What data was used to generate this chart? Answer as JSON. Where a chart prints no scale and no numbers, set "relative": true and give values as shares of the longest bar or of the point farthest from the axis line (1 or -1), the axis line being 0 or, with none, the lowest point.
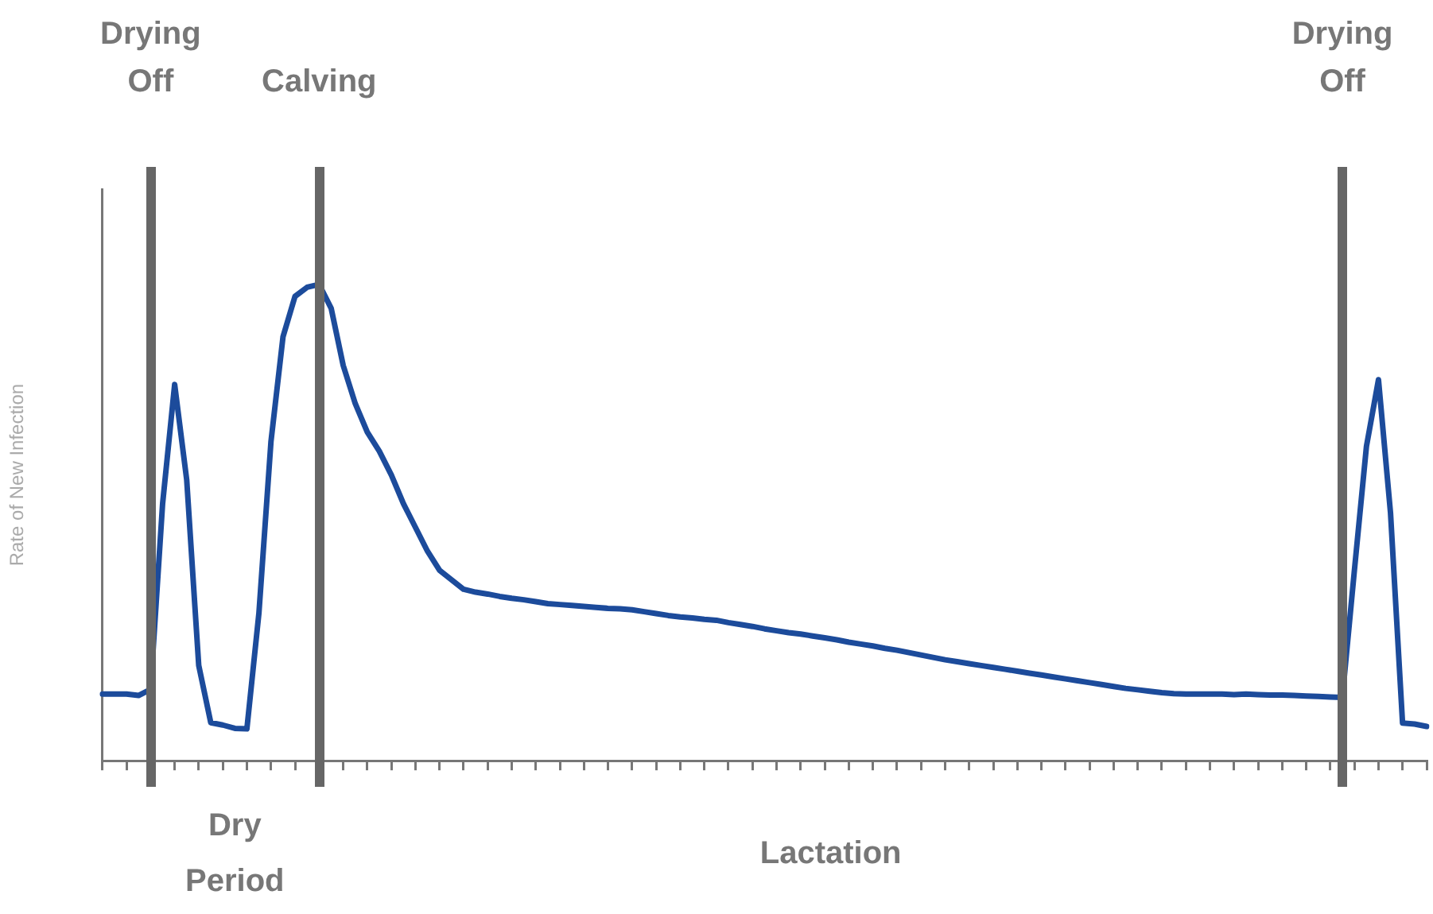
{
  "chart_data": {
    "type": "line",
    "ylabel": "Rate of New Infection",
    "relative": true,
    "color": "#1c4b9b",
    "marker": "none",
    "categories": [
      null,
      null,
      null,
      null,
      null,
      null,
      null,
      null,
      null,
      null,
      null,
      null,
      null,
      null,
      null,
      null,
      null,
      null,
      null,
      null,
      null,
      null,
      null,
      null,
      null,
      null,
      null,
      null,
      null,
      null,
      null,
      null,
      null,
      null,
      null,
      null,
      null,
      null,
      null,
      null,
      null,
      null,
      null,
      null,
      null,
      null,
      null,
      null,
      null,
      null,
      null,
      null,
      null,
      null,
      null,
      null,
      null,
      null,
      null,
      null,
      null,
      null,
      null,
      null,
      null,
      null,
      null,
      null,
      null,
      null,
      null,
      null,
      null,
      null,
      null,
      null,
      null,
      null,
      null,
      null,
      null,
      null,
      null,
      null,
      null,
      null,
      null,
      null,
      null,
      null,
      null,
      null,
      null,
      null,
      null,
      null,
      null,
      null,
      null,
      null,
      null,
      null,
      null,
      null,
      null,
      null,
      null,
      null,
      null,
      null,
      null
    ],
    "values": [
      0.14,
      0.14,
      0.14,
      0.137,
      0.15,
      0.54,
      0.79,
      0.59,
      0.2,
      0.08,
      0.075,
      0.068,
      0.067,
      0.31,
      0.67,
      0.89,
      0.975,
      0.994,
      1,
      0.95,
      0.83,
      0.75,
      0.69,
      0.65,
      0.6,
      0.54,
      0.49,
      0.44,
      0.4,
      0.38,
      0.36,
      0.354,
      0.35,
      0.345,
      0.341,
      0.338,
      0.334,
      0.33,
      0.328,
      0.326,
      0.324,
      0.322,
      0.32,
      0.319,
      0.317,
      0.313,
      0.309,
      0.305,
      0.302,
      0.3,
      0.297,
      0.295,
      0.29,
      0.286,
      0.282,
      0.277,
      0.273,
      0.269,
      0.266,
      0.262,
      0.258,
      0.254,
      0.249,
      0.245,
      0.241,
      0.236,
      0.232,
      0.227,
      0.222,
      0.217,
      0.212,
      0.208,
      0.204,
      0.2,
      0.196,
      0.192,
      0.188,
      0.184,
      0.18,
      0.176,
      0.172,
      0.168,
      0.164,
      0.16,
      0.156,
      0.152,
      0.149,
      0.146,
      0.143,
      0.141,
      0.14,
      0.14,
      0.14,
      0.14,
      0.139,
      0.14,
      0.139,
      0.138,
      0.138,
      0.137,
      0.136,
      0.135,
      0.134,
      0.133,
      0.4,
      0.66,
      0.8,
      0.52,
      0.079,
      0.077,
      0.072
    ],
    "annotations": [
      "Drying Off",
      "Calving",
      "Drying Off",
      "Dry Period",
      "Lactation"
    ]
  }
}
